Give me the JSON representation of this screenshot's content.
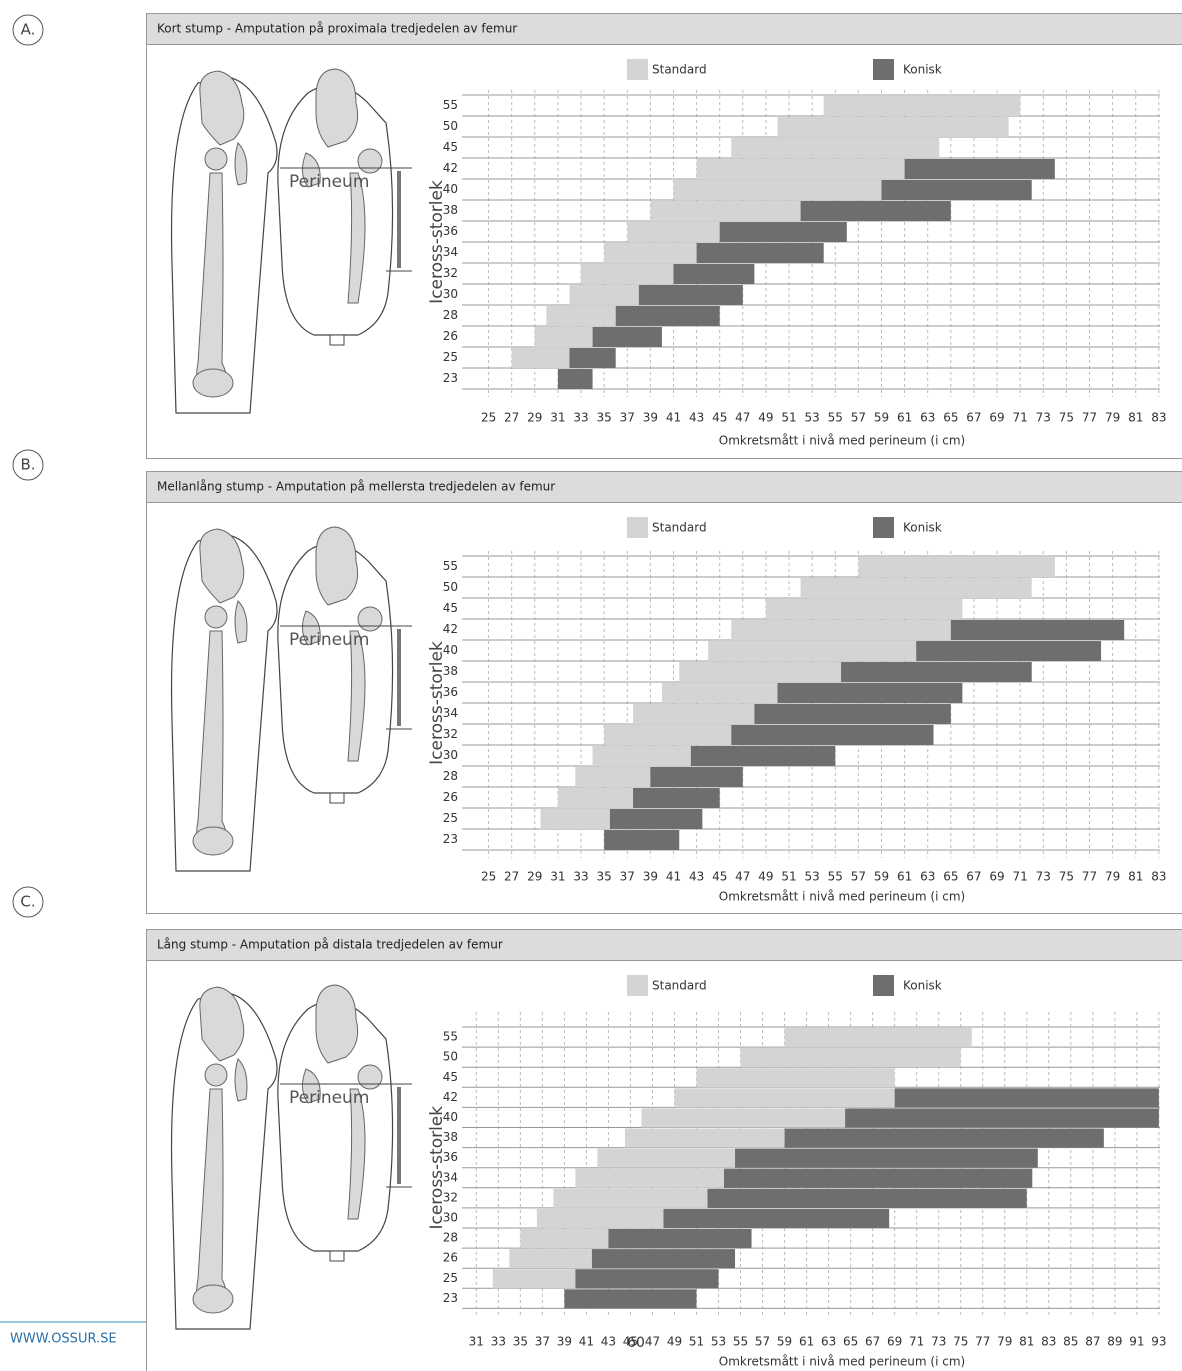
{
  "panel_labels": [
    "A.",
    "B.",
    "C."
  ],
  "footer": {
    "url": "WWW.OSSUR.SE",
    "page_number": "60"
  },
  "chart_data": [
    {
      "type": "bar",
      "orientation": "horizontal",
      "title": "Kort stump - Amputation på proximala tredjedelen av femur",
      "annotation": "Perineum",
      "ylabel": "Iceross-storlek",
      "xlabel": "Omkretsmått i nivå med perineum (i cm)",
      "categories": [
        "55",
        "50",
        "45",
        "42",
        "40",
        "38",
        "36",
        "34",
        "32",
        "30",
        "28",
        "26",
        "25",
        "23"
      ],
      "series": [
        {
          "name": "Standard",
          "color": "#d4d4d4",
          "values": [
            [
              54,
              71
            ],
            [
              50,
              70
            ],
            [
              46,
              64
            ],
            [
              43,
              61
            ],
            [
              41,
              59
            ],
            [
              39,
              52
            ],
            [
              37,
              45
            ],
            [
              35,
              43
            ],
            [
              33,
              41
            ],
            [
              32,
              38
            ],
            [
              30,
              36
            ],
            [
              29,
              34
            ],
            [
              27,
              32
            ],
            null
          ]
        },
        {
          "name": "Konisk",
          "color": "#6e6e6e",
          "values": [
            null,
            null,
            null,
            [
              61,
              74
            ],
            [
              59,
              72
            ],
            [
              52,
              65
            ],
            [
              45,
              56
            ],
            [
              43,
              54
            ],
            [
              41,
              48
            ],
            [
              38,
              47
            ],
            [
              36,
              45
            ],
            [
              34,
              40
            ],
            [
              32,
              36
            ],
            [
              31,
              34
            ]
          ]
        }
      ],
      "xlim": [
        22.7,
        83.1
      ],
      "xticks": [
        25,
        27,
        29,
        31,
        33,
        35,
        37,
        39,
        41,
        43,
        45,
        47,
        49,
        51,
        53,
        55,
        57,
        59,
        61,
        63,
        65,
        67,
        69,
        71,
        73,
        75,
        77,
        79,
        81,
        83
      ],
      "grid": true
    },
    {
      "type": "bar",
      "orientation": "horizontal",
      "title": "Mellanlång stump - Amputation på mellersta tredjedelen av femur",
      "annotation": "Perineum",
      "ylabel": "Iceross-storlek",
      "xlabel": "Omkretsmått i nivå med perineum (i cm)",
      "categories": [
        "55",
        "50",
        "45",
        "42",
        "40",
        "38",
        "36",
        "34",
        "32",
        "30",
        "28",
        "26",
        "25",
        "23"
      ],
      "series": [
        {
          "name": "Standard",
          "color": "#d4d4d4",
          "values": [
            [
              57,
              74
            ],
            [
              52,
              72
            ],
            [
              49,
              66
            ],
            [
              46,
              65
            ],
            [
              44,
              62
            ],
            [
              41.5,
              55.5
            ],
            [
              40,
              50
            ],
            [
              37.5,
              48
            ],
            [
              35,
              46
            ],
            [
              34,
              42.5
            ],
            [
              32.5,
              39
            ],
            [
              31,
              37.5
            ],
            [
              29.5,
              35.5
            ],
            null
          ]
        },
        {
          "name": "Konisk",
          "color": "#6e6e6e",
          "values": [
            null,
            null,
            null,
            [
              65,
              80
            ],
            [
              62,
              78
            ],
            [
              55.5,
              72
            ],
            [
              50,
              66
            ],
            [
              48,
              65
            ],
            [
              46,
              63.5
            ],
            [
              42.5,
              55
            ],
            [
              39,
              47
            ],
            [
              37.5,
              45
            ],
            [
              35.5,
              43.5
            ],
            [
              35,
              41.5
            ]
          ]
        }
      ],
      "xlim": [
        22.7,
        83.1
      ],
      "xticks": [
        25,
        27,
        29,
        31,
        33,
        35,
        37,
        39,
        41,
        43,
        45,
        47,
        49,
        51,
        53,
        55,
        57,
        59,
        61,
        63,
        65,
        67,
        69,
        71,
        73,
        75,
        77,
        79,
        81,
        83
      ],
      "grid": true
    },
    {
      "type": "bar",
      "orientation": "horizontal",
      "title": "Lång stump - Amputation på distala tredjedelen av femur",
      "annotation": "Perineum",
      "ylabel": "Iceross-storlek",
      "xlabel": "Omkretsmått i nivå med perineum (i cm)",
      "categories": [
        "55",
        "50",
        "45",
        "42",
        "40",
        "38",
        "36",
        "34",
        "32",
        "30",
        "28",
        "26",
        "25",
        "23"
      ],
      "series": [
        {
          "name": "Standard",
          "color": "#d4d4d4",
          "values": [
            [
              59,
              76
            ],
            [
              55,
              75
            ],
            [
              51,
              69
            ],
            [
              49,
              69
            ],
            [
              46,
              64.5
            ],
            [
              44.5,
              59
            ],
            [
              42,
              54.5
            ],
            [
              40,
              53.5
            ],
            [
              38,
              52
            ],
            [
              36.5,
              48
            ],
            [
              35,
              43
            ],
            [
              34,
              41.5
            ],
            [
              32.5,
              40
            ],
            null
          ]
        },
        {
          "name": "Konisk",
          "color": "#6e6e6e",
          "values": [
            null,
            null,
            null,
            [
              69,
              93
            ],
            [
              64.5,
              93
            ],
            [
              59,
              88
            ],
            [
              54.5,
              82
            ],
            [
              53.5,
              81.5
            ],
            [
              52,
              81
            ],
            [
              48,
              68.5
            ],
            [
              43,
              56
            ],
            [
              41.5,
              54.5
            ],
            [
              40,
              53
            ],
            [
              39,
              51
            ]
          ]
        }
      ],
      "xlim": [
        29.7,
        93.1
      ],
      "xticks": [
        31,
        33,
        35,
        37,
        39,
        41,
        43,
        45,
        47,
        49,
        51,
        53,
        55,
        57,
        59,
        61,
        63,
        65,
        67,
        69,
        71,
        73,
        75,
        77,
        79,
        81,
        83,
        85,
        87,
        89,
        91,
        93
      ],
      "grid": true
    }
  ]
}
